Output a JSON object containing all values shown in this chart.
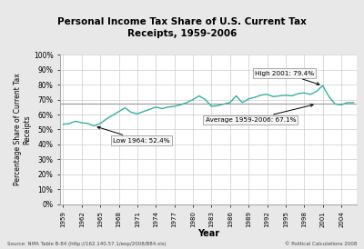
{
  "title": "Personal Income Tax Share of U.S. Current Tax\nReceipts, 1959-2006",
  "xlabel": "Year",
  "ylabel": "Percentage Share of Current Tax\nReceipts",
  "years": [
    1959,
    1960,
    1961,
    1962,
    1963,
    1964,
    1965,
    1966,
    1967,
    1968,
    1969,
    1970,
    1971,
    1972,
    1973,
    1974,
    1975,
    1976,
    1977,
    1978,
    1979,
    1980,
    1981,
    1982,
    1983,
    1984,
    1985,
    1986,
    1987,
    1988,
    1989,
    1990,
    1991,
    1992,
    1993,
    1994,
    1995,
    1996,
    1997,
    1998,
    1999,
    2000,
    2001,
    2002,
    2003,
    2004,
    2005,
    2006
  ],
  "values": [
    53.5,
    54.0,
    55.5,
    54.5,
    54.0,
    52.4,
    54.0,
    57.0,
    59.5,
    62.0,
    64.5,
    61.5,
    60.5,
    62.0,
    63.5,
    65.0,
    64.0,
    65.0,
    65.5,
    66.5,
    68.0,
    70.0,
    72.5,
    70.0,
    65.5,
    66.0,
    67.0,
    68.0,
    72.5,
    68.0,
    70.5,
    71.5,
    73.0,
    73.5,
    72.0,
    72.5,
    73.0,
    72.5,
    74.0,
    74.5,
    73.5,
    75.5,
    79.4,
    72.0,
    67.0,
    66.5,
    68.0,
    68.0
  ],
  "average": 67.1,
  "low_year": 1964,
  "low_val": 52.4,
  "high_year": 2001,
  "high_val": 79.4,
  "line_color": "#3aada0",
  "avg_line_color": "#999999",
  "annotation_box_color": "#f5f5f5",
  "annotation_box_edge": "#aaaaaa",
  "ylim": [
    0,
    100
  ],
  "yticks": [
    0,
    10,
    20,
    30,
    40,
    50,
    60,
    70,
    80,
    90,
    100
  ],
  "xtick_years": [
    1959,
    1962,
    1965,
    1968,
    1971,
    1974,
    1977,
    1980,
    1983,
    1986,
    1989,
    1992,
    1995,
    1998,
    2001,
    2004
  ],
  "source_text": "Source: NIPA Table B-84 (http://162.140.57.1/eop/2008/B84.xls)",
  "copyright_text": "© Political Calculations 2008",
  "bg_color": "#e8e8e8",
  "plot_bg_color": "#ffffff",
  "grid_color": "#cccccc"
}
